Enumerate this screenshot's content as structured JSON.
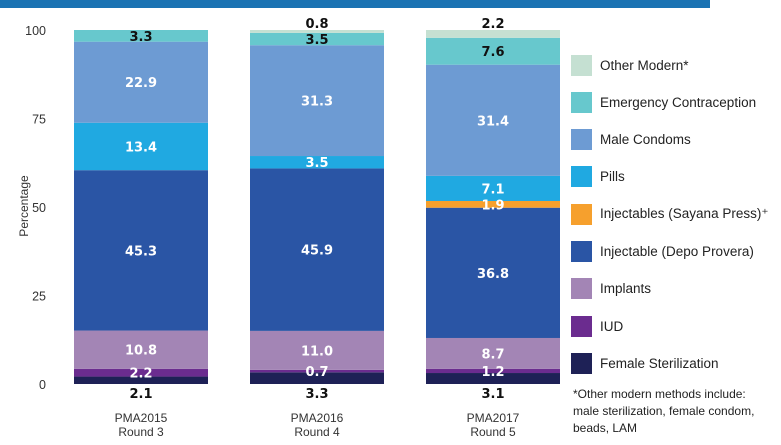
{
  "header": {
    "bar_color": "#1b73b3"
  },
  "chart_data": {
    "type": "bar",
    "stacked": true,
    "ylabel": "Percentage",
    "xlabel": "",
    "title": "",
    "ylim": [
      0,
      100
    ],
    "yticks": [
      "0",
      "25",
      "50",
      "75",
      "100"
    ],
    "grid": false,
    "legend_position": "right",
    "categories": [
      {
        "line1": "PMA2015",
        "line2": "Round 3"
      },
      {
        "line1": "PMA2016",
        "line2": "Round 4"
      },
      {
        "line1": "PMA2017",
        "line2": "Round 5"
      }
    ],
    "series": [
      {
        "name": "Female Sterilization",
        "color": "#1e2156",
        "values": [
          2.1,
          3.3,
          3.1
        ],
        "labels": [
          "2.1",
          "3.3",
          "3.1"
        ],
        "label_color": "#111111",
        "label_pos": "below"
      },
      {
        "name": "IUD",
        "color": "#6b2c8f",
        "values": [
          2.2,
          0.7,
          1.2
        ],
        "labels": [
          "2.2",
          "0.7",
          "1.2"
        ],
        "label_color": "#ffffff",
        "label_pos": "inside"
      },
      {
        "name": "Implants",
        "color": "#a385b5",
        "values": [
          10.8,
          11.0,
          8.7
        ],
        "labels": [
          "10.8",
          "11.0",
          "8.7"
        ],
        "label_color": "#ffffff",
        "label_pos": "inside"
      },
      {
        "name": "Injectable (Depo Provera)",
        "color": "#2a55a5",
        "values": [
          45.3,
          45.9,
          36.8
        ],
        "labels": [
          "45.3",
          "45.9",
          "36.8"
        ],
        "label_color": "#ffffff",
        "label_pos": "inside"
      },
      {
        "name": "Injectables (Sayana Press)⁺",
        "color": "#f6a02d",
        "values": [
          0,
          0,
          1.9
        ],
        "labels": [
          "",
          "",
          "1.9"
        ],
        "label_color": "#ffffff",
        "label_pos": "inside"
      },
      {
        "name": "Pills",
        "color": "#20a9e1",
        "values": [
          13.4,
          3.5,
          7.1
        ],
        "labels": [
          "13.4",
          "3.5",
          "7.1"
        ],
        "label_color": "#ffffff",
        "label_pos": "inside"
      },
      {
        "name": "Male Condoms",
        "color": "#6d9bd3",
        "values": [
          22.9,
          31.3,
          31.4
        ],
        "labels": [
          "22.9",
          "31.3",
          "31.4"
        ],
        "label_color": "#ffffff",
        "label_pos": "inside"
      },
      {
        "name": "Emergency Contraception",
        "color": "#67c8cd",
        "values": [
          3.3,
          3.5,
          7.6
        ],
        "labels": [
          "3.3",
          "3.5",
          "7.6"
        ],
        "label_color": "#111111",
        "label_pos": "inside"
      },
      {
        "name": "Other Modern*",
        "color": "#c5e0d2",
        "values": [
          0,
          0.8,
          2.2
        ],
        "labels": [
          "",
          "0.8",
          "2.2"
        ],
        "label_color": "#111111",
        "label_pos": "above"
      }
    ]
  },
  "footnote": {
    "line1": "*Other modern methods include:",
    "line2": "male sterilization, female condom,",
    "line3": "beads, LAM"
  }
}
